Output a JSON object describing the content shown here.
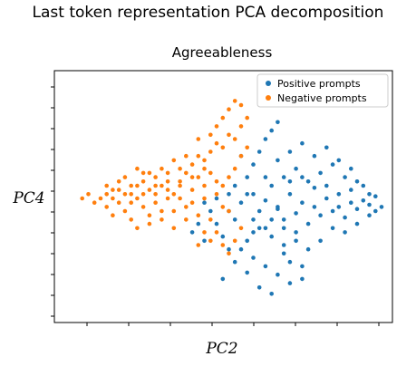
{
  "figure_title": "Last token representation PCA decomposition",
  "chart_data": {
    "type": "scatter",
    "title": "Agreeableness",
    "xlabel": "PC2",
    "ylabel": "PC4",
    "xlim": [
      0,
      100
    ],
    "ylim": [
      0,
      100
    ],
    "grid": false,
    "legend_position": "top-right",
    "series": [
      {
        "name": "Positive prompts",
        "color": "#1f77b4",
        "points": [
          [
            62,
            49
          ],
          [
            66,
            45
          ],
          [
            70,
            52
          ],
          [
            74,
            48
          ],
          [
            78,
            55
          ],
          [
            82,
            50
          ],
          [
            86,
            46
          ],
          [
            90,
            54
          ],
          [
            94,
            49
          ],
          [
            98,
            51
          ],
          [
            68,
            40
          ],
          [
            72,
            43
          ],
          [
            76,
            38
          ],
          [
            80,
            42
          ],
          [
            84,
            44
          ],
          [
            88,
            41
          ],
          [
            92,
            45
          ],
          [
            96,
            47
          ],
          [
            64,
            56
          ],
          [
            68,
            60
          ],
          [
            72,
            64
          ],
          [
            76,
            58
          ],
          [
            80,
            62
          ],
          [
            84,
            66
          ],
          [
            88,
            60
          ],
          [
            92,
            58
          ],
          [
            60,
            36
          ],
          [
            64,
            32
          ],
          [
            68,
            28
          ],
          [
            72,
            34
          ],
          [
            56,
            30
          ],
          [
            58,
            22
          ],
          [
            62,
            18
          ],
          [
            66,
            14
          ],
          [
            70,
            10
          ],
          [
            74,
            12
          ],
          [
            60,
            8
          ],
          [
            64,
            5
          ],
          [
            56,
            15
          ],
          [
            52,
            40
          ],
          [
            54,
            48
          ],
          [
            58,
            52
          ],
          [
            62,
            60
          ],
          [
            66,
            68
          ],
          [
            70,
            72
          ],
          [
            74,
            76
          ],
          [
            78,
            70
          ],
          [
            82,
            74
          ],
          [
            86,
            68
          ],
          [
            90,
            64
          ],
          [
            60,
            44
          ],
          [
            64,
            40
          ],
          [
            68,
            36
          ],
          [
            72,
            30
          ],
          [
            76,
            26
          ],
          [
            80,
            30
          ],
          [
            84,
            36
          ],
          [
            88,
            34
          ],
          [
            92,
            38
          ],
          [
            96,
            42
          ],
          [
            100,
            46
          ],
          [
            44,
            44
          ],
          [
            46,
            38
          ],
          [
            48,
            32
          ],
          [
            50,
            26
          ],
          [
            52,
            20
          ],
          [
            48,
            12
          ],
          [
            42,
            30
          ],
          [
            40,
            38
          ],
          [
            38,
            34
          ],
          [
            56,
            60
          ],
          [
            58,
            66
          ],
          [
            60,
            72
          ],
          [
            62,
            78
          ],
          [
            64,
            82
          ],
          [
            66,
            86
          ],
          [
            54,
            70
          ],
          [
            50,
            52
          ],
          [
            46,
            50
          ],
          [
            42,
            48
          ],
          [
            58,
            40
          ],
          [
            62,
            36
          ],
          [
            66,
            46
          ],
          [
            70,
            58
          ],
          [
            74,
            60
          ],
          [
            78,
            46
          ],
          [
            82,
            56
          ],
          [
            86,
            52
          ],
          [
            90,
            48
          ],
          [
            94,
            56
          ],
          [
            96,
            52
          ],
          [
            98,
            44
          ],
          [
            70,
            20
          ],
          [
            74,
            18
          ],
          [
            68,
            24
          ],
          [
            54,
            26
          ],
          [
            58,
            34
          ],
          [
            50,
            44
          ],
          [
            52,
            56
          ],
          [
            56,
            52
          ]
        ]
      },
      {
        "name": "Negative prompts",
        "color": "#ff7f0e",
        "points": [
          [
            8,
            50
          ],
          [
            10,
            46
          ],
          [
            12,
            54
          ],
          [
            14,
            48
          ],
          [
            16,
            44
          ],
          [
            18,
            52
          ],
          [
            20,
            50
          ],
          [
            22,
            46
          ],
          [
            24,
            54
          ],
          [
            26,
            48
          ],
          [
            28,
            56
          ],
          [
            30,
            50
          ],
          [
            32,
            52
          ],
          [
            34,
            58
          ],
          [
            36,
            46
          ],
          [
            38,
            54
          ],
          [
            40,
            60
          ],
          [
            42,
            56
          ],
          [
            44,
            62
          ],
          [
            46,
            58
          ],
          [
            10,
            56
          ],
          [
            12,
            42
          ],
          [
            14,
            58
          ],
          [
            16,
            60
          ],
          [
            18,
            40
          ],
          [
            20,
            56
          ],
          [
            22,
            62
          ],
          [
            24,
            42
          ],
          [
            26,
            60
          ],
          [
            28,
            44
          ],
          [
            30,
            62
          ],
          [
            32,
            44
          ],
          [
            34,
            64
          ],
          [
            36,
            62
          ],
          [
            38,
            66
          ],
          [
            40,
            70
          ],
          [
            42,
            68
          ],
          [
            44,
            72
          ],
          [
            46,
            76
          ],
          [
            48,
            74
          ],
          [
            50,
            80
          ],
          [
            52,
            78
          ],
          [
            54,
            84
          ],
          [
            56,
            88
          ],
          [
            44,
            80
          ],
          [
            46,
            84
          ],
          [
            48,
            88
          ],
          [
            50,
            92
          ],
          [
            52,
            96
          ],
          [
            54,
            94
          ],
          [
            40,
            78
          ],
          [
            36,
            70
          ],
          [
            32,
            68
          ],
          [
            28,
            64
          ],
          [
            24,
            62
          ],
          [
            20,
            64
          ],
          [
            16,
            52
          ],
          [
            6,
            48
          ],
          [
            4,
            52
          ],
          [
            2,
            50
          ],
          [
            12,
            50
          ],
          [
            18,
            48
          ],
          [
            22,
            52
          ],
          [
            26,
            52
          ],
          [
            30,
            54
          ],
          [
            34,
            50
          ],
          [
            38,
            48
          ],
          [
            42,
            50
          ],
          [
            46,
            52
          ],
          [
            48,
            46
          ],
          [
            50,
            44
          ],
          [
            44,
            40
          ],
          [
            40,
            42
          ],
          [
            36,
            40
          ],
          [
            32,
            36
          ],
          [
            28,
            40
          ],
          [
            24,
            38
          ],
          [
            20,
            36
          ],
          [
            48,
            56
          ],
          [
            50,
            60
          ],
          [
            52,
            64
          ],
          [
            54,
            70
          ],
          [
            56,
            74
          ],
          [
            42,
            64
          ],
          [
            38,
            60
          ],
          [
            34,
            56
          ],
          [
            30,
            58
          ],
          [
            26,
            56
          ],
          [
            22,
            58
          ],
          [
            18,
            56
          ],
          [
            14,
            54
          ],
          [
            10,
            52
          ],
          [
            46,
            34
          ],
          [
            48,
            28
          ],
          [
            50,
            24
          ],
          [
            52,
            30
          ],
          [
            44,
            30
          ],
          [
            42,
            34
          ],
          [
            40,
            28
          ],
          [
            54,
            36
          ]
        ]
      }
    ]
  }
}
